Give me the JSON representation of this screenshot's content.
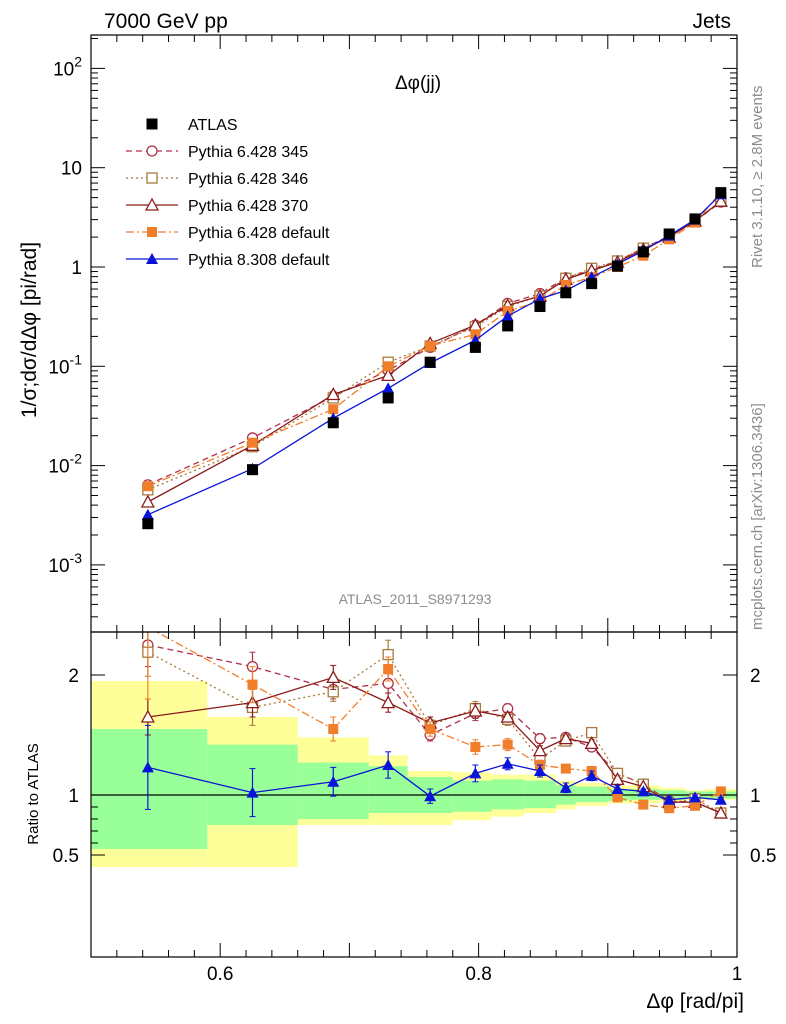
{
  "header": {
    "left": "7000 GeV pp",
    "right": "Jets"
  },
  "side_labels": {
    "rivet": "Rivet 3.1.10, ≥ 2.8M events",
    "mcplots": "mcplots.cern.ch [arXiv:1306.3436]"
  },
  "analysis_id": "ATLAS_2011_S8971293",
  "chart_data": [
    {
      "type": "line",
      "title": "Δφ(jj)",
      "ylabel": "1/σ;dσ/dΔφ [pi/rad]",
      "xlabel": "",
      "yscale": "log",
      "xlim": [
        0.5,
        1.0
      ],
      "ylim": [
        0.0002,
        200
      ],
      "y_ticks": [
        "10^-3",
        "10^-2",
        "10^-1",
        "1",
        "10",
        "10^2"
      ],
      "legend_placement": "top-left",
      "x": [
        0.544,
        0.625,
        0.6875,
        0.73,
        0.7625,
        0.7975,
        0.8225,
        0.8475,
        0.8675,
        0.8875,
        0.9075,
        0.9275,
        0.9475,
        0.9675,
        0.9875
      ],
      "series": [
        {
          "name": "ATLAS",
          "color": "#000000",
          "marker": "square-filled",
          "values": [
            0.0026,
            0.0091,
            0.027,
            0.048,
            0.11,
            0.155,
            0.255,
            0.4,
            0.55,
            0.68,
            1.02,
            1.42,
            2.15,
            3.05,
            5.6
          ],
          "y_err_rel": [
            0.12,
            0.1,
            0.08,
            0.07,
            0.05,
            0.05,
            0.04,
            0.04,
            0.04,
            0.04,
            0.03,
            0.03,
            0.03,
            0.03,
            0.03
          ]
        },
        {
          "name": "Pythia 6.428 345",
          "color": "#b03048",
          "dash": "6,4",
          "marker": "circle-open",
          "values": [
            0.0064,
            0.019,
            0.05,
            0.091,
            0.155,
            0.26,
            0.43,
            0.54,
            0.78,
            0.93,
            1.15,
            1.55,
            2.05,
            2.9,
            4.5
          ]
        },
        {
          "name": "Pythia 6.428 346",
          "color": "#a87a3c",
          "dash": "2,3",
          "marker": "square-open",
          "values": [
            0.0057,
            0.0155,
            0.048,
            0.11,
            0.16,
            0.25,
            0.4,
            0.51,
            0.77,
            0.97,
            1.15,
            1.55,
            2.0,
            2.95,
            4.6
          ]
        },
        {
          "name": "Pythia 6.428 370",
          "color": "#8b1a1a",
          "dash": "",
          "marker": "triangle-open",
          "values": [
            0.0043,
            0.016,
            0.052,
            0.081,
            0.17,
            0.26,
            0.41,
            0.51,
            0.75,
            0.92,
            1.12,
            1.5,
            2.0,
            2.9,
            4.6
          ]
        },
        {
          "name": "Pythia 6.428 default",
          "color": "#f07e2a",
          "dash": "8,3,2,3",
          "marker": "square-filled",
          "values": [
            0.0062,
            0.017,
            0.037,
            0.1,
            0.16,
            0.21,
            0.36,
            0.45,
            0.66,
            0.79,
            1.0,
            1.3,
            1.9,
            2.8,
            5.7
          ]
        },
        {
          "name": "Pythia 8.308 default",
          "color": "#0a14d8",
          "dash": "",
          "marker": "triangle-filled",
          "values": [
            0.0032,
            0.0093,
            0.03,
            0.06,
            0.108,
            0.183,
            0.32,
            0.48,
            0.58,
            0.79,
            1.07,
            1.46,
            2.07,
            3.0,
            5.4
          ]
        }
      ]
    },
    {
      "type": "line",
      "ylabel": "Ratio to ATLAS",
      "xlabel": "Δφ [rad/pi]",
      "xlim": [
        0.5,
        1.0
      ],
      "ylim": [
        0.4,
        2.3
      ],
      "x_ticks": [
        "0.6",
        "0.8",
        "1"
      ],
      "y_ticks": [
        "0.5",
        "1",
        "2"
      ],
      "reference_line": 1,
      "bands": {
        "edges": [
          0.5,
          0.59,
          0.66,
          0.715,
          0.745,
          0.78,
          0.81,
          0.835,
          0.86,
          0.875,
          0.9,
          0.915,
          0.94,
          0.96,
          0.975,
          1.0
        ],
        "yellow_low": [
          0.4,
          0.4,
          0.75,
          0.75,
          0.75,
          0.79,
          0.82,
          0.85,
          0.88,
          0.91,
          0.93,
          0.93,
          0.95,
          0.96,
          0.96
        ],
        "yellow_high": [
          1.95,
          1.65,
          1.48,
          1.33,
          1.2,
          1.19,
          1.17,
          1.17,
          1.12,
          1.1,
          1.08,
          1.08,
          1.06,
          1.04,
          1.05
        ],
        "green_low": [
          0.55,
          0.75,
          0.8,
          0.85,
          0.85,
          0.86,
          0.88,
          0.89,
          0.92,
          0.94,
          0.95,
          0.96,
          0.96,
          0.97,
          0.97
        ],
        "green_high": [
          1.55,
          1.42,
          1.27,
          1.24,
          1.15,
          1.12,
          1.13,
          1.12,
          1.08,
          1.07,
          1.05,
          1.05,
          1.04,
          1.03,
          1.03
        ]
      },
      "ratios": [
        {
          "name": "Pythia 6.428 345",
          "values": [
            2.25,
            2.07,
            1.88,
            1.93,
            1.5,
            1.68,
            1.72,
            1.47,
            1.48,
            1.4,
            1.18,
            1.09,
            0.95,
            0.94,
            0.85
          ],
          "err": [
            0.18,
            0.12,
            0.08,
            0.08,
            0.05,
            0.06,
            0.04,
            0.04,
            0.03,
            0.03,
            0.03,
            0.02,
            0.02,
            0.02,
            0.02
          ]
        },
        {
          "name": "Pythia 6.428 346",
          "values": [
            2.19,
            1.73,
            1.86,
            2.17,
            1.58,
            1.72,
            1.63,
            1.3,
            1.45,
            1.52,
            1.18,
            1.09,
            0.93,
            0.97,
            0.85
          ],
          "err": [
            0.2,
            0.15,
            0.08,
            0.12,
            0.05,
            0.06,
            0.05,
            0.04,
            0.03,
            0.03,
            0.03,
            0.02,
            0.02,
            0.02,
            0.02
          ]
        },
        {
          "name": "Pythia 6.428 370",
          "values": [
            1.65,
            1.77,
            1.98,
            1.77,
            1.6,
            1.7,
            1.65,
            1.37,
            1.47,
            1.43,
            1.13,
            1.07,
            0.94,
            0.94,
            0.85
          ],
          "err": [
            0.15,
            0.12,
            0.1,
            0.08,
            0.05,
            0.06,
            0.04,
            0.04,
            0.03,
            0.03,
            0.03,
            0.02,
            0.02,
            0.02,
            0.02
          ]
        },
        {
          "name": "Pythia 6.428 default",
          "values": [
            2.4,
            1.92,
            1.55,
            2.05,
            1.55,
            1.4,
            1.42,
            1.25,
            1.22,
            1.2,
            0.98,
            0.92,
            0.89,
            0.91,
            1.03
          ],
          "err": [
            0.6,
            0.15,
            0.1,
            0.1,
            0.06,
            0.06,
            0.05,
            0.04,
            0.03,
            0.03,
            0.03,
            0.02,
            0.02,
            0.02,
            0.02
          ]
        },
        {
          "name": "Pythia 8.308 default",
          "values": [
            1.23,
            1.02,
            1.11,
            1.25,
            0.99,
            1.18,
            1.26,
            1.2,
            1.06,
            1.16,
            1.05,
            1.03,
            0.96,
            0.98,
            0.96
          ],
          "err": [
            0.35,
            0.2,
            0.12,
            0.11,
            0.06,
            0.07,
            0.05,
            0.05,
            0.04,
            0.04,
            0.03,
            0.02,
            0.02,
            0.02,
            0.02
          ]
        }
      ]
    }
  ]
}
